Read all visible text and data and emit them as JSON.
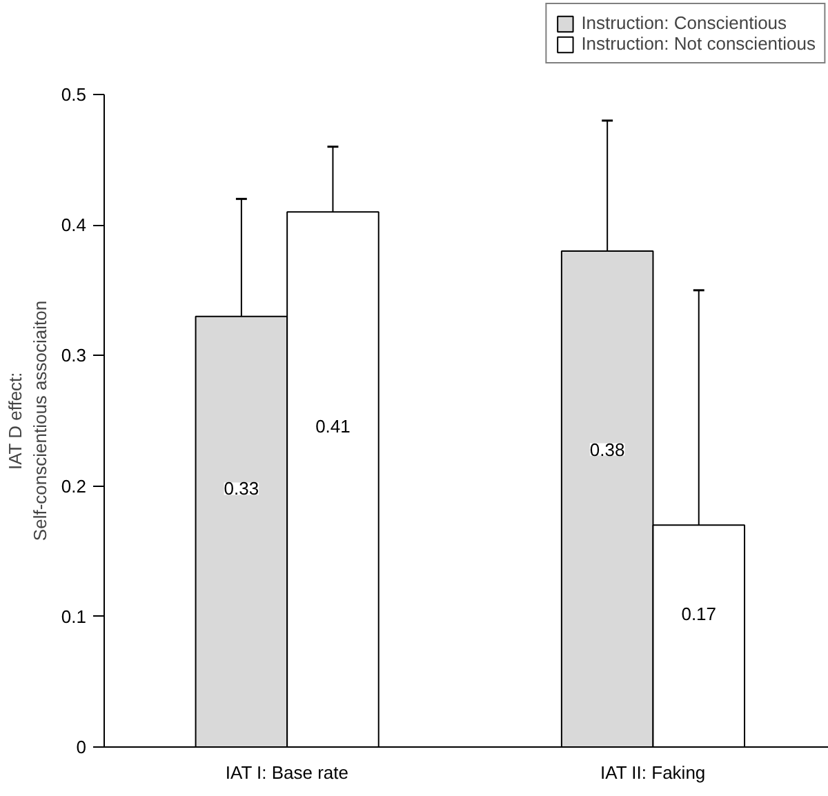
{
  "chart_data": {
    "type": "bar",
    "ylabel": "IAT D effect:\nSelf-conscientious associaiton",
    "categories": [
      "IAT I: Base rate",
      "IAT II: Faking"
    ],
    "series": [
      {
        "name": "Instruction: Conscientious",
        "color": "#d9d9d9",
        "values": [
          0.33,
          0.38
        ],
        "errors": [
          [
            0.33,
            0.42
          ],
          [
            0.38,
            0.48
          ]
        ]
      },
      {
        "name": "Instruction: Not conscientious",
        "color": "#ffffff",
        "values": [
          0.41,
          0.17
        ],
        "errors": [
          [
            0.41,
            0.46
          ],
          [
            0.17,
            0.35
          ]
        ]
      }
    ],
    "ylim": [
      0,
      0.5
    ],
    "yticks": [
      0,
      0.1,
      0.2,
      0.3,
      0.4,
      0.5
    ],
    "data_labels": true,
    "legend": "top right",
    "grid": false
  }
}
